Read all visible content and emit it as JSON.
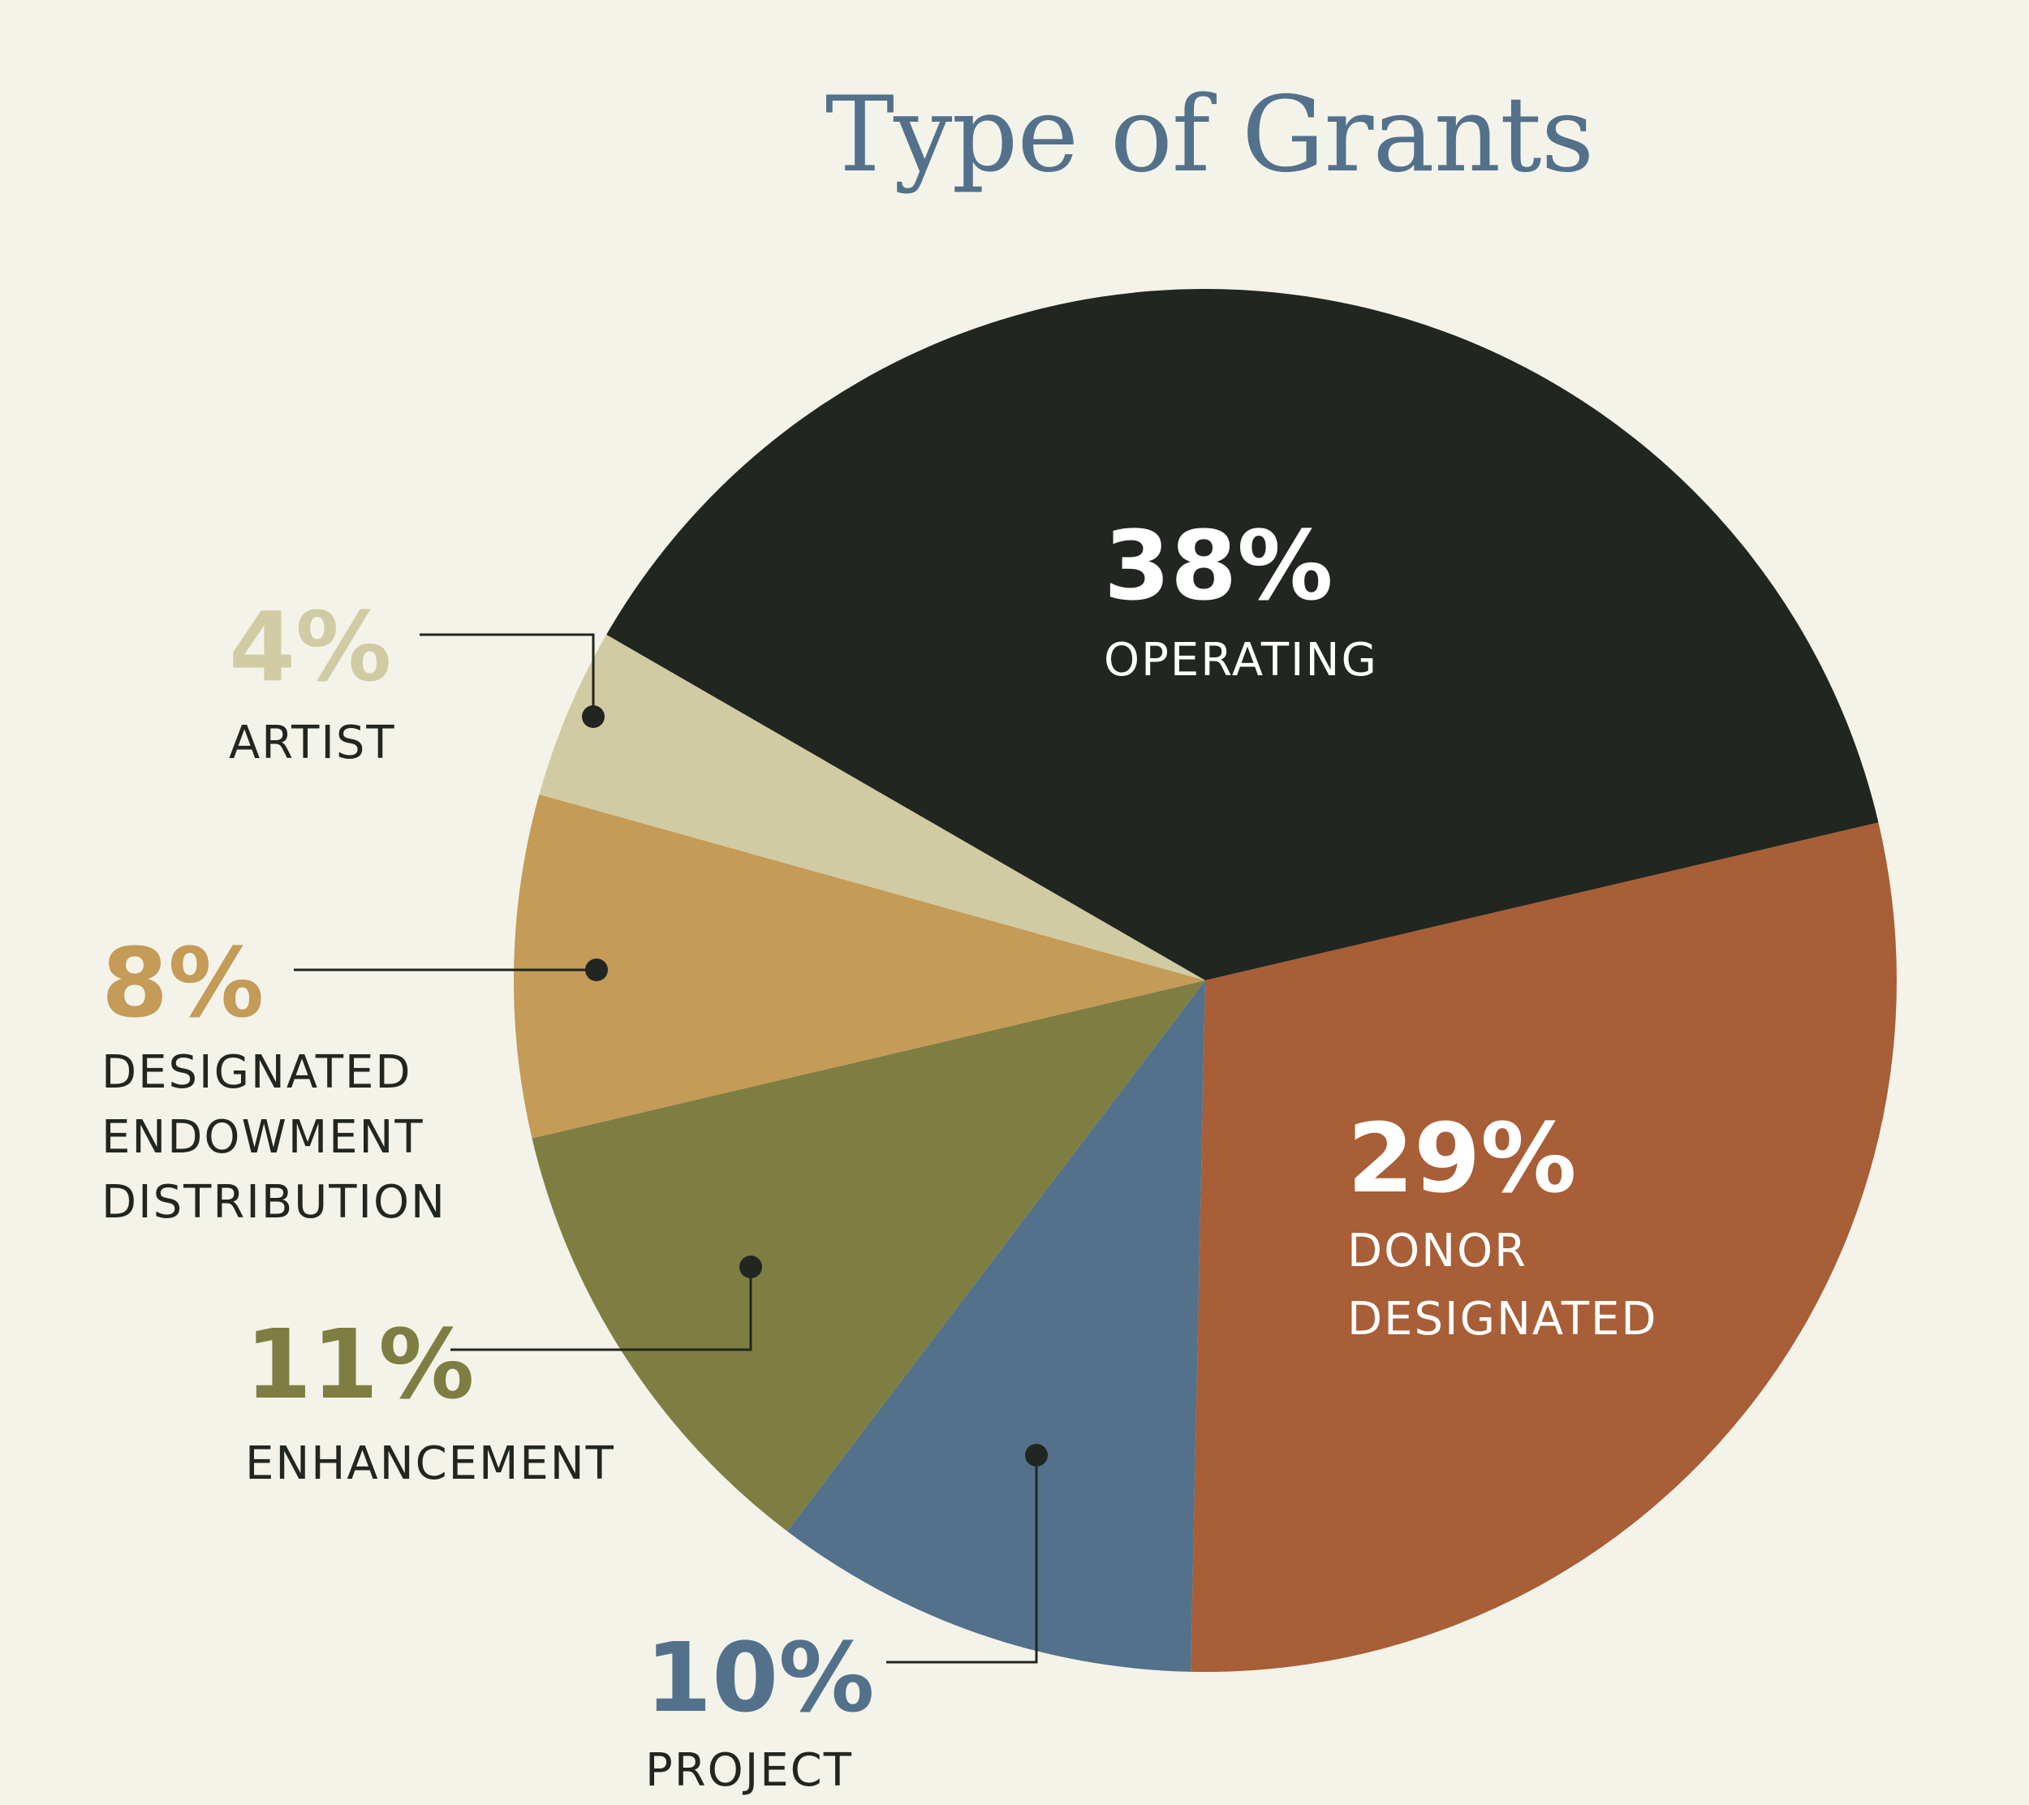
{
  "chart_data": {
    "type": "pie",
    "title": "Type of Grants",
    "slices": [
      {
        "label": [
          "OPERATING"
        ],
        "percent_label": "38%",
        "value": 38,
        "color": "#222620",
        "label_color": "#ffffff",
        "percent_color": "#ffffff"
      },
      {
        "label": [
          "DONOR",
          "DESIGNATED"
        ],
        "percent_label": "29%",
        "value": 29,
        "color": "#a85e36",
        "label_color": "#ffffff",
        "percent_color": "#ffffff"
      },
      {
        "label": [
          "PROJECT"
        ],
        "percent_label": "10%",
        "value": 10,
        "color": "#53718b",
        "label_color": "#222620",
        "percent_color": "#53718b"
      },
      {
        "label": [
          "ENHANCEMENT"
        ],
        "percent_label": "11%",
        "value": 11,
        "color": "#7e7e42",
        "label_color": "#222620",
        "percent_color": "#7e7e42"
      },
      {
        "label": [
          "DESIGNATED",
          "ENDOWMENT",
          "DISTRIBUTION"
        ],
        "percent_label": "8%",
        "value": 8,
        "color": "#c49b57",
        "label_color": "#222620",
        "percent_color": "#c49b57"
      },
      {
        "label": [
          "ARTIST"
        ],
        "percent_label": "4%",
        "value": 4,
        "color": "#d0cba3",
        "label_color": "#222620",
        "percent_color": "#d0cba3"
      }
    ],
    "title_color": "#53718b",
    "leader_color": "#222620",
    "legend": "none"
  }
}
